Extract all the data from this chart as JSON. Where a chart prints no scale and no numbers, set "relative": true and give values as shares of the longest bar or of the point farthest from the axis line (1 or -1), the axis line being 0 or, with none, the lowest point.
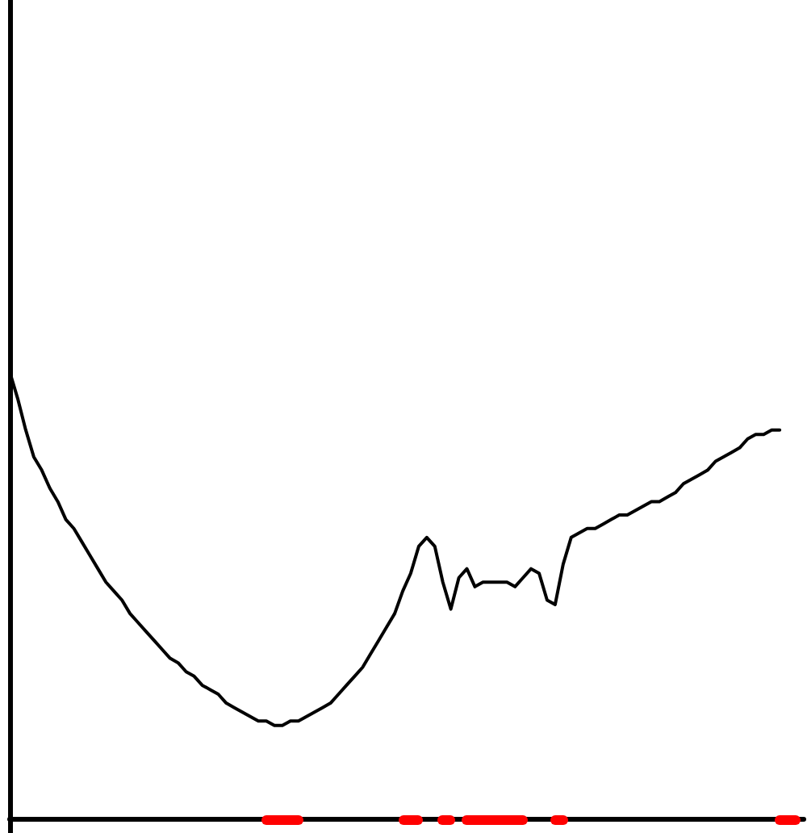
{
  "chart_data": {
    "type": "line",
    "relative": true,
    "grid": false,
    "categories": [
      null,
      null,
      null,
      null,
      null,
      null,
      null,
      null,
      null,
      null,
      null,
      null,
      null,
      null,
      null,
      null,
      null,
      null,
      null,
      null,
      null,
      null,
      null,
      null,
      null,
      null,
      null,
      null,
      null,
      null,
      null,
      null,
      null,
      null,
      null,
      null,
      null,
      null,
      null,
      null,
      null,
      null,
      null,
      null,
      null,
      null,
      null,
      null,
      null,
      null,
      null,
      null,
      null,
      null,
      null,
      null,
      null,
      null,
      null,
      null,
      null,
      null,
      null,
      null,
      null,
      null,
      null,
      null,
      null,
      null,
      null,
      null,
      null,
      null,
      null,
      null,
      null,
      null,
      null,
      null,
      null,
      null,
      null,
      null,
      null,
      null,
      null,
      null,
      null,
      null,
      null,
      null,
      null,
      null,
      null,
      null,
      null,
      null,
      null,
      null
    ],
    "series": [
      {
        "color": "#000000",
        "line_style": "solid",
        "values": [
          1,
          0.94,
          0.87,
          0.81,
          0.78,
          0.74,
          0.71,
          0.67,
          0.65,
          0.62,
          0.59,
          0.56,
          0.53,
          0.51,
          0.49,
          0.46,
          0.44,
          0.42,
          0.4,
          0.38,
          0.36,
          0.35,
          0.33,
          0.32,
          0.3,
          0.29,
          0.28,
          0.26,
          0.25,
          0.24,
          0.23,
          0.22,
          0.22,
          0.21,
          0.21,
          0.22,
          0.22,
          0.23,
          0.24,
          0.25,
          0.26,
          0.28,
          0.3,
          0.32,
          0.34,
          0.37,
          0.4,
          0.43,
          0.46,
          0.51,
          0.55,
          0.61,
          0.63,
          0.61,
          0.53,
          0.47,
          0.54,
          0.56,
          0.52,
          0.53,
          0.53,
          0.53,
          0.53,
          0.52,
          0.54,
          0.56,
          0.55,
          0.49,
          0.48,
          0.57,
          0.63,
          0.64,
          0.65,
          0.65,
          0.66,
          0.67,
          0.68,
          0.68,
          0.69,
          0.7,
          0.71,
          0.71,
          0.72,
          0.73,
          0.75,
          0.76,
          0.77,
          0.78,
          0.8,
          0.81,
          0.82,
          0.83,
          0.85,
          0.86,
          0.86,
          0.87,
          0.87,
          null,
          null,
          null
        ]
      }
    ]
  }
}
